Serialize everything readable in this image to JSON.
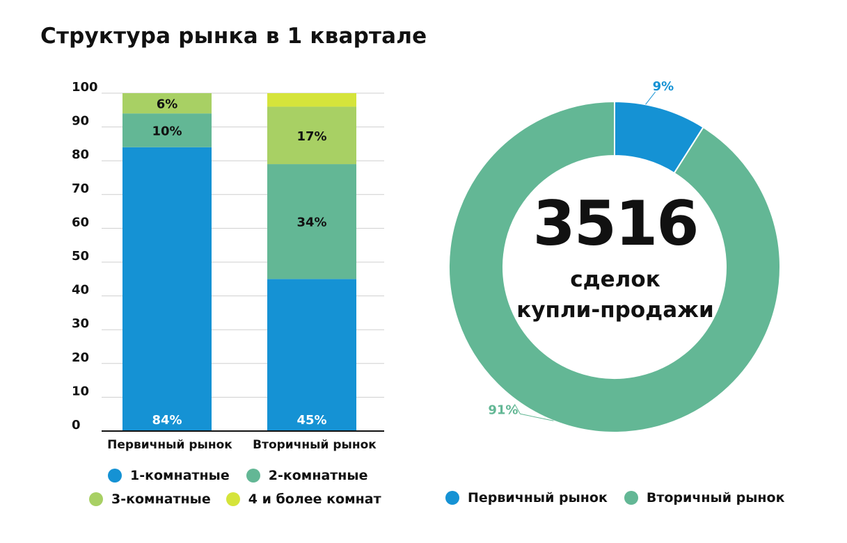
{
  "title": "Структура рынка в 1 квартале",
  "colors": {
    "room1": "#1592d4",
    "room2": "#63b795",
    "room3": "#a8d064",
    "room4": "#d5e43b",
    "primary": "#1592d4",
    "secondary": "#63b795",
    "grid": "#cfcfcf"
  },
  "chart_data": [
    {
      "type": "bar",
      "stacked": true,
      "categories": [
        "Первичный рынок",
        "Вторичный рынок"
      ],
      "series": [
        {
          "name": "1-комнатные",
          "color": "#1592d4",
          "values": [
            84,
            45
          ],
          "labels": [
            "84%",
            "45%"
          ]
        },
        {
          "name": "2-комнатные",
          "color": "#63b795",
          "values": [
            10,
            34
          ],
          "labels": [
            "10%",
            "34%"
          ]
        },
        {
          "name": "3-комнатные",
          "color": "#a8d064",
          "values": [
            6,
            17
          ],
          "labels": [
            "6%",
            "17%"
          ]
        },
        {
          "name": "4 и более комнат",
          "color": "#d5e43b",
          "values": [
            0,
            4
          ],
          "labels": [
            "",
            ""
          ]
        }
      ],
      "ylim": [
        0,
        100
      ],
      "yticks": [
        0,
        10,
        20,
        30,
        40,
        50,
        60,
        70,
        80,
        90,
        100
      ],
      "grid": true,
      "legend": "bottom"
    },
    {
      "type": "pie",
      "donut": true,
      "slices": [
        {
          "name": "Первичный рынок",
          "value": 9,
          "label": "9%",
          "color": "#1592d4"
        },
        {
          "name": "Вторичный рынок",
          "value": 91,
          "label": "91%",
          "color": "#63b795"
        }
      ],
      "center_value": "3516",
      "center_line1": "сделок",
      "center_line2": "купли-продажи",
      "legend": "bottom"
    }
  ]
}
